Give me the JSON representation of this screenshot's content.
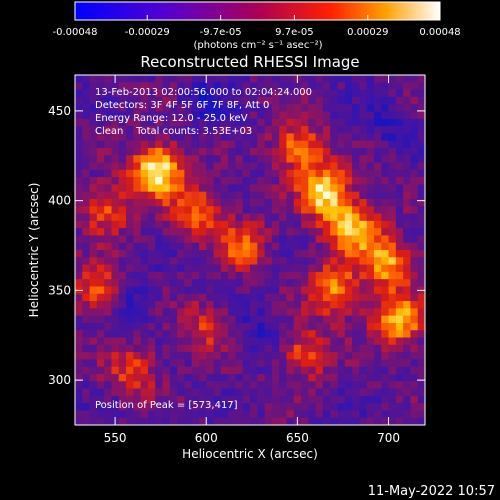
{
  "chart_data": {
    "type": "heatmap",
    "title": "Reconstructed RHESSI Image",
    "xlabel": "Heliocentric X (arcsec)",
    "ylabel": "Heliocentric Y (arcsec)",
    "xlim": [
      528,
      720
    ],
    "ylim": [
      275,
      470
    ],
    "x_ticks": [
      "550",
      "600",
      "650",
      "700"
    ],
    "x_tick_values": [
      550,
      600,
      650,
      700
    ],
    "y_ticks": [
      "300",
      "350",
      "400",
      "450"
    ],
    "y_tick_values": [
      300,
      350,
      400,
      450
    ],
    "colorbar": {
      "ticks": [
        "-0.00048",
        "-0.00029",
        "-9.7e-05",
        "9.7e-05",
        "0.00029",
        "0.00048"
      ],
      "tick_values": [
        -0.00048,
        -0.00029,
        -9.7e-05,
        9.7e-05,
        0.00029,
        0.00048
      ],
      "range": [
        -0.00048,
        0.00048
      ],
      "unit_label": "(photons cm⁻² s⁻¹ asec⁻²)",
      "colormap": "blue-purple-red-yellow-white"
    },
    "annotations": [
      "13-Feb-2013 02:00:56.000 to 02:04:24.000",
      "Detectors: 3F 4F 5F 6F 7F 8F, Att 0",
      "Energy Range: 12.0 - 25.0 keV",
      "Clean    Total counts: 3.53E+03"
    ],
    "peak_label": "Position of Peak = [573,417]",
    "peak": [
      573,
      417
    ],
    "bright_sources": [
      {
        "x": 573,
        "y": 417,
        "v": 1.0
      },
      {
        "x": 595,
        "y": 394,
        "v": 0.55
      },
      {
        "x": 650,
        "y": 430,
        "v": 0.6
      },
      {
        "x": 665,
        "y": 405,
        "v": 0.85
      },
      {
        "x": 680,
        "y": 385,
        "v": 0.8
      },
      {
        "x": 700,
        "y": 365,
        "v": 0.7
      },
      {
        "x": 670,
        "y": 350,
        "v": 0.65
      },
      {
        "x": 705,
        "y": 333,
        "v": 0.75
      },
      {
        "x": 545,
        "y": 395,
        "v": 0.5
      },
      {
        "x": 540,
        "y": 350,
        "v": 0.55
      },
      {
        "x": 620,
        "y": 375,
        "v": 0.5
      },
      {
        "x": 560,
        "y": 305,
        "v": 0.45
      },
      {
        "x": 655,
        "y": 315,
        "v": 0.5
      },
      {
        "x": 600,
        "y": 330,
        "v": 0.4
      }
    ],
    "dim_sources": [
      {
        "x": 600,
        "y": 455,
        "v": 0.6
      },
      {
        "x": 630,
        "y": 330,
        "v": 0.45
      },
      {
        "x": 560,
        "y": 345,
        "v": 0.5
      },
      {
        "x": 700,
        "y": 445,
        "v": 0.5
      }
    ]
  },
  "footer": {
    "timestamp": "11-May-2022 10:57"
  }
}
